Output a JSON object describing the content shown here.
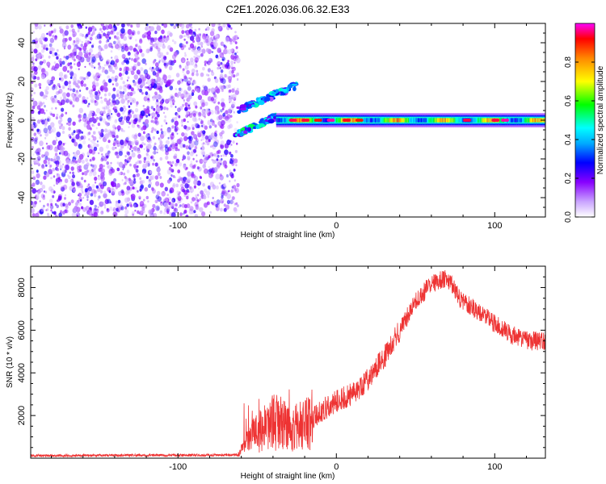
{
  "title": "C2E1.2026.036.06.32.E33",
  "chart_data": [
    {
      "type": "heatmap",
      "xlabel": "Height of straight line (km)",
      "ylabel": "Frequency (Hz)",
      "xlim": [
        -193,
        132
      ],
      "ylim": [
        -50,
        50
      ],
      "x_ticks": [
        -100,
        0,
        100
      ],
      "y_ticks": [
        -40,
        -20,
        0,
        20,
        40
      ],
      "x_tick_labels": [
        "-100",
        "0",
        "100"
      ],
      "y_tick_labels": [
        "-40",
        "-20",
        "0",
        "20",
        "40"
      ],
      "colorbar": {
        "label": "Normalized spectral amplitude",
        "range": [
          0,
          1
        ],
        "ticks": [
          "0.0",
          "0.2",
          "0.4",
          "0.6",
          "0.8"
        ],
        "tick_values": [
          0,
          0.2,
          0.4,
          0.6,
          0.8
        ],
        "colors": [
          "#ffffff",
          "#8800ff",
          "#0000ff",
          "#00ffff",
          "#00ff00",
          "#ffff00",
          "#ff8800",
          "#ff0000",
          "#ff00ff"
        ]
      },
      "regions": {
        "noise": {
          "x_range": [
            -193,
            -62
          ],
          "f_range": [
            -50,
            50
          ],
          "amp_range": [
            0.0,
            0.12
          ]
        },
        "transition_upper_branch": {
          "x_range": [
            -62,
            -25
          ],
          "f_start": 5,
          "f_end": 18
        },
        "transition_lower_branch": {
          "x_range": [
            -64,
            -38
          ],
          "f_start": -8,
          "f_end": 2
        },
        "main_band": {
          "x_range": [
            -38,
            132
          ],
          "center_hz": 0,
          "half_width_hz": 2,
          "peak_amp": 0.95
        }
      }
    },
    {
      "type": "line",
      "xlabel": "Height of straight line (km)",
      "ylabel": "SNR (10 * v/v)",
      "xlim": [
        -193,
        132
      ],
      "ylim": [
        0,
        9000
      ],
      "x_ticks": [
        -100,
        0,
        100
      ],
      "y_ticks": [
        2000,
        4000,
        6000,
        8000
      ],
      "x_tick_labels": [
        "-100",
        "0",
        "100"
      ],
      "y_tick_labels": [
        "2000",
        "4000",
        "6000",
        "8000"
      ],
      "color": "#ee3333",
      "series_envelope": [
        {
          "x": -193,
          "y": 120
        },
        {
          "x": -62,
          "y": 150
        },
        {
          "x": -55,
          "y": 900
        },
        {
          "x": -40,
          "y": 1700
        },
        {
          "x": -30,
          "y": 1500
        },
        {
          "x": -20,
          "y": 1500
        },
        {
          "x": -10,
          "y": 2200
        },
        {
          "x": 0,
          "y": 2700
        },
        {
          "x": 10,
          "y": 3000
        },
        {
          "x": 20,
          "y": 3700
        },
        {
          "x": 30,
          "y": 4700
        },
        {
          "x": 40,
          "y": 6000
        },
        {
          "x": 50,
          "y": 7300
        },
        {
          "x": 60,
          "y": 8200
        },
        {
          "x": 70,
          "y": 8400
        },
        {
          "x": 80,
          "y": 7300
        },
        {
          "x": 90,
          "y": 6900
        },
        {
          "x": 100,
          "y": 6300
        },
        {
          "x": 110,
          "y": 5800
        },
        {
          "x": 120,
          "y": 5500
        },
        {
          "x": 132,
          "y": 5500
        }
      ]
    }
  ]
}
